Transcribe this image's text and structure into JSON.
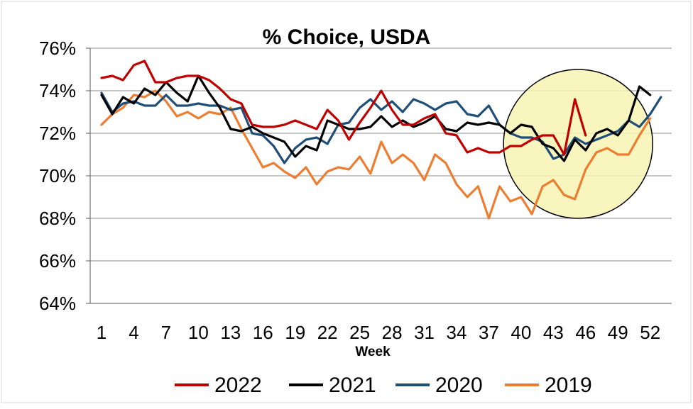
{
  "chart_data": {
    "type": "line",
    "title": "% Choice, USDA",
    "xlabel": "Week",
    "ylabel": "",
    "ylim": [
      64,
      77
    ],
    "yticks": [
      64,
      66,
      68,
      70,
      72,
      74,
      76
    ],
    "ytick_labels": [
      "64%",
      "66%",
      "68%",
      "70%",
      "72%",
      "74%",
      "76%"
    ],
    "xlim": [
      1,
      54
    ],
    "xticks": [
      1,
      4,
      7,
      10,
      13,
      16,
      19,
      22,
      25,
      28,
      31,
      34,
      37,
      40,
      43,
      46,
      49,
      52
    ],
    "xtick_labels": [
      "1",
      "4",
      "7",
      "10",
      "13",
      "16",
      "19",
      "22",
      "25",
      "28",
      "31",
      "34",
      "37",
      "40",
      "43",
      "46",
      "49",
      "52"
    ],
    "grid": "horizontal",
    "legend_position": "bottom",
    "annotation": {
      "type": "circle-highlight",
      "description": "",
      "center_week": 45.3,
      "center_value": 71.5,
      "color": "#f7f3b4"
    },
    "series": [
      {
        "name": "2022",
        "color": "#c00000",
        "x": [
          1,
          2,
          3,
          4,
          5,
          6,
          7,
          8,
          9,
          10,
          11,
          12,
          13,
          14,
          15,
          16,
          17,
          18,
          19,
          20,
          21,
          22,
          23,
          24,
          25,
          26,
          27,
          28,
          29,
          30,
          31,
          32,
          33,
          34,
          35,
          36,
          37,
          38,
          39,
          40,
          41,
          42,
          43,
          44,
          45,
          46
        ],
        "values": [
          74.6,
          74.7,
          74.5,
          75.2,
          75.4,
          74.4,
          74.4,
          74.6,
          74.7,
          74.7,
          74.5,
          74.1,
          73.6,
          73.4,
          72.4,
          72.3,
          72.3,
          72.4,
          72.6,
          72.4,
          72.2,
          73.1,
          72.6,
          71.7,
          72.5,
          73.2,
          74.0,
          73.1,
          72.4,
          72.4,
          72.7,
          72.9,
          72.0,
          71.9,
          71.1,
          71.3,
          71.1,
          71.1,
          71.4,
          71.4,
          71.7,
          71.9,
          71.9,
          71.0,
          73.6,
          71.9
        ]
      },
      {
        "name": "2021",
        "color": "#000000",
        "x": [
          1,
          2,
          3,
          4,
          5,
          6,
          7,
          8,
          9,
          10,
          11,
          12,
          13,
          14,
          15,
          16,
          17,
          18,
          19,
          20,
          21,
          22,
          23,
          24,
          25,
          26,
          27,
          28,
          29,
          30,
          31,
          32,
          33,
          34,
          35,
          36,
          37,
          38,
          39,
          40,
          41,
          42,
          43,
          44,
          45,
          46,
          47,
          48,
          49,
          50,
          51,
          52
        ],
        "values": [
          73.8,
          72.9,
          73.7,
          73.4,
          74.1,
          73.8,
          74.4,
          73.9,
          73.5,
          74.7,
          73.9,
          73.2,
          72.2,
          72.1,
          72.3,
          72.0,
          71.8,
          71.6,
          70.9,
          71.4,
          71.2,
          72.6,
          72.4,
          72.2,
          72.2,
          72.3,
          72.8,
          72.3,
          72.6,
          72.3,
          72.5,
          72.8,
          72.2,
          72.1,
          72.5,
          72.4,
          72.5,
          72.4,
          72.0,
          72.4,
          72.3,
          71.5,
          71.3,
          70.7,
          71.7,
          71.2,
          72.0,
          72.2,
          71.9,
          72.6,
          74.2,
          73.8
        ]
      },
      {
        "name": "2020",
        "color": "#1f4e79",
        "x": [
          1,
          2,
          3,
          4,
          5,
          6,
          7,
          8,
          9,
          10,
          11,
          12,
          13,
          14,
          15,
          16,
          17,
          18,
          19,
          20,
          21,
          22,
          23,
          24,
          25,
          26,
          27,
          28,
          29,
          30,
          31,
          32,
          33,
          34,
          35,
          36,
          37,
          38,
          39,
          40,
          41,
          42,
          43,
          44,
          45,
          46,
          47,
          48,
          49,
          50,
          51,
          52,
          53
        ],
        "values": [
          73.9,
          73.0,
          73.4,
          73.5,
          73.3,
          73.3,
          73.8,
          73.3,
          73.3,
          73.4,
          73.3,
          73.3,
          73.1,
          73.2,
          72.0,
          71.9,
          71.4,
          70.6,
          71.3,
          71.7,
          71.8,
          71.5,
          72.4,
          72.5,
          73.2,
          73.6,
          73.1,
          73.5,
          73.0,
          73.6,
          73.4,
          73.1,
          73.4,
          73.5,
          72.9,
          72.8,
          73.3,
          72.4,
          72.0,
          71.8,
          71.8,
          71.6,
          70.8,
          71.0,
          71.8,
          71.5,
          71.7,
          71.9,
          72.1,
          72.6,
          72.3,
          72.9,
          73.7
        ]
      },
      {
        "name": "2019",
        "color": "#ed7d31",
        "x": [
          1,
          2,
          3,
          4,
          5,
          6,
          7,
          8,
          9,
          10,
          11,
          12,
          13,
          14,
          15,
          16,
          17,
          18,
          19,
          20,
          21,
          22,
          23,
          24,
          25,
          26,
          27,
          28,
          29,
          30,
          31,
          32,
          33,
          34,
          35,
          36,
          37,
          38,
          39,
          40,
          41,
          42,
          43,
          44,
          45,
          46,
          47,
          48,
          49,
          50,
          51,
          52
        ],
        "values": [
          72.4,
          72.9,
          73.2,
          73.8,
          73.7,
          74.0,
          73.5,
          72.8,
          73.0,
          72.7,
          73.0,
          72.9,
          73.2,
          72.2,
          71.3,
          70.4,
          70.6,
          70.2,
          69.9,
          70.4,
          69.6,
          70.2,
          70.4,
          70.3,
          70.9,
          70.1,
          71.6,
          70.6,
          71.0,
          70.6,
          69.8,
          71.0,
          70.6,
          69.6,
          69.0,
          69.5,
          68.0,
          69.5,
          68.8,
          69.0,
          68.2,
          69.5,
          69.8,
          69.1,
          68.9,
          70.3,
          71.1,
          71.3,
          71.0,
          71.0,
          71.9,
          72.7
        ]
      }
    ]
  }
}
